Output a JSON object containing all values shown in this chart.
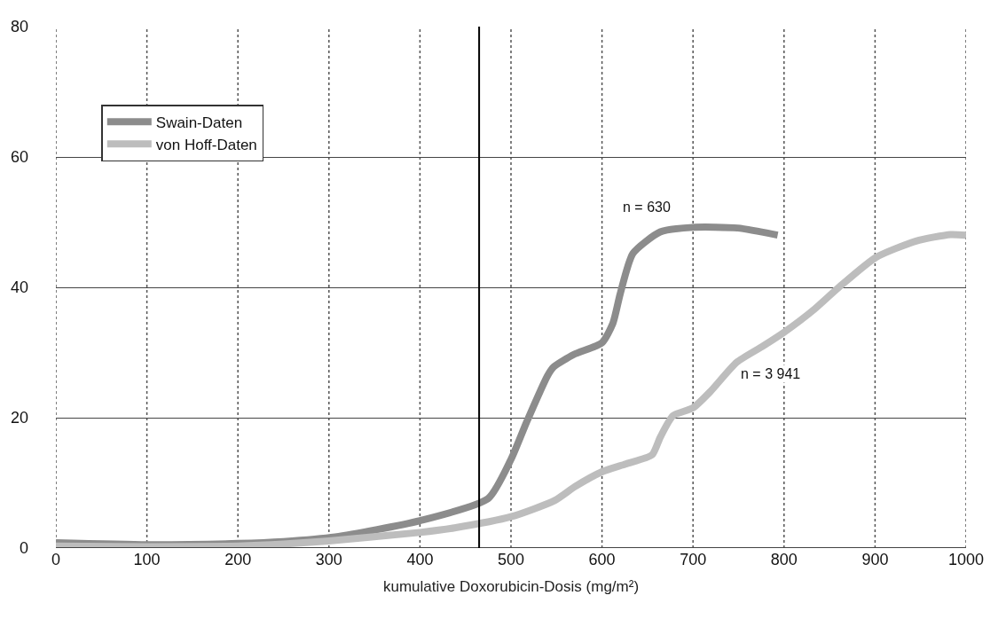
{
  "chart_data": {
    "type": "line",
    "xlabel": "kumulative Doxorubicin-Dosis (mg/m²)",
    "series": [
      {
        "name": "Swain-Daten",
        "color": "#8c8c8c",
        "x": [
          0,
          100,
          200,
          250,
          307,
          400,
          475,
          500,
          518,
          540,
          547,
          569,
          600,
          612,
          620,
          634,
          664,
          700,
          749,
          793
        ],
        "values": [
          0.8,
          0.5,
          0.7,
          1.0,
          1.7,
          4.2,
          7.6,
          13.6,
          19.6,
          26.4,
          27.8,
          29.7,
          31.5,
          34.5,
          39.0,
          45.2,
          48.5,
          49.2,
          49.1,
          48.0
        ]
      },
      {
        "name": "von Hoff-Daten",
        "color": "#bdbdbd",
        "x": [
          0,
          100,
          200,
          250,
          300,
          400,
          438,
          500,
          548,
          570,
          600,
          626,
          655,
          664,
          678,
          700,
          719,
          748,
          777,
          800,
          833,
          861,
          901,
          945,
          983,
          1000
        ],
        "values": [
          0.3,
          0.2,
          0.3,
          0.6,
          1.1,
          2.4,
          3.1,
          4.8,
          7.3,
          9.4,
          11.7,
          12.9,
          14.3,
          17.0,
          20.3,
          21.5,
          24.0,
          28.5,
          31.0,
          33.1,
          36.6,
          40.1,
          44.6,
          47.1,
          48.1,
          48.0
        ]
      }
    ],
    "xlim": [
      0,
      1000
    ],
    "xticks": [
      0,
      100,
      200,
      300,
      400,
      500,
      600,
      700,
      800,
      900,
      1000
    ],
    "ylim": [
      0,
      80
    ],
    "yticks": [
      0,
      20,
      40,
      60,
      80
    ],
    "grid": true,
    "legend": "top left",
    "marker": "none",
    "line_style": "solid",
    "ref_lines": [
      {
        "axis": "x",
        "value": 465,
        "color": "#000000"
      }
    ],
    "annotations": [
      "n = 630",
      "n = 3 941"
    ]
  }
}
